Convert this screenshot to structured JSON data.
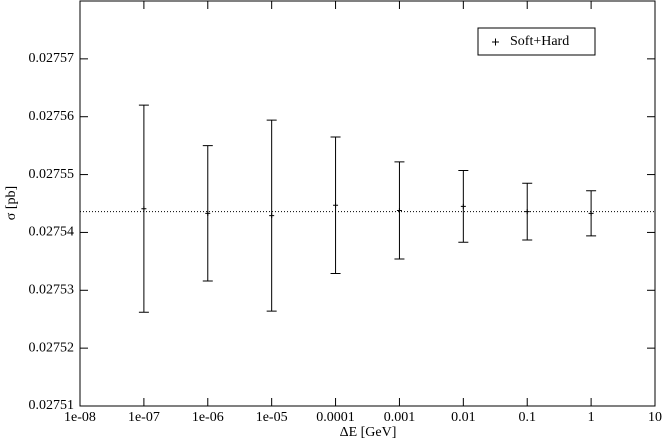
{
  "chart_data": {
    "type": "errorbar",
    "xlabel": "ΔE [GeV]",
    "ylabel": "σ [pb]",
    "xscale": "log",
    "xlim": [
      1e-08,
      10
    ],
    "xticks": [
      {
        "value": 1e-08,
        "label": "1e-08"
      },
      {
        "value": 1e-07,
        "label": "1e-07"
      },
      {
        "value": 1e-06,
        "label": "1e-06"
      },
      {
        "value": 1e-05,
        "label": "1e-05"
      },
      0.0001,
      0.001,
      0.01,
      0.1,
      1,
      10
    ],
    "ylim": [
      0.02751,
      0.02758
    ],
    "yticks": [
      0.02751,
      0.02752,
      0.02753,
      0.02754,
      0.02755,
      0.02756,
      0.02757
    ],
    "reference_line": 0.0275436,
    "legend": "top-right",
    "series": [
      {
        "name": "Soft+Hard",
        "color": "#000000",
        "x": [
          1e-07,
          1e-06,
          1e-05,
          0.0001,
          0.001,
          0.01,
          0.1,
          1
        ],
        "values": [
          0.0275441,
          0.0275433,
          0.0275429,
          0.0275447,
          0.0275438,
          0.0275445,
          0.0275436,
          0.0275433
        ],
        "errors": [
          1.79e-05,
          1.17e-05,
          1.65e-05,
          1.18e-05,
          8.4e-06,
          6.2e-06,
          4.9e-06,
          3.9e-06
        ]
      }
    ]
  }
}
